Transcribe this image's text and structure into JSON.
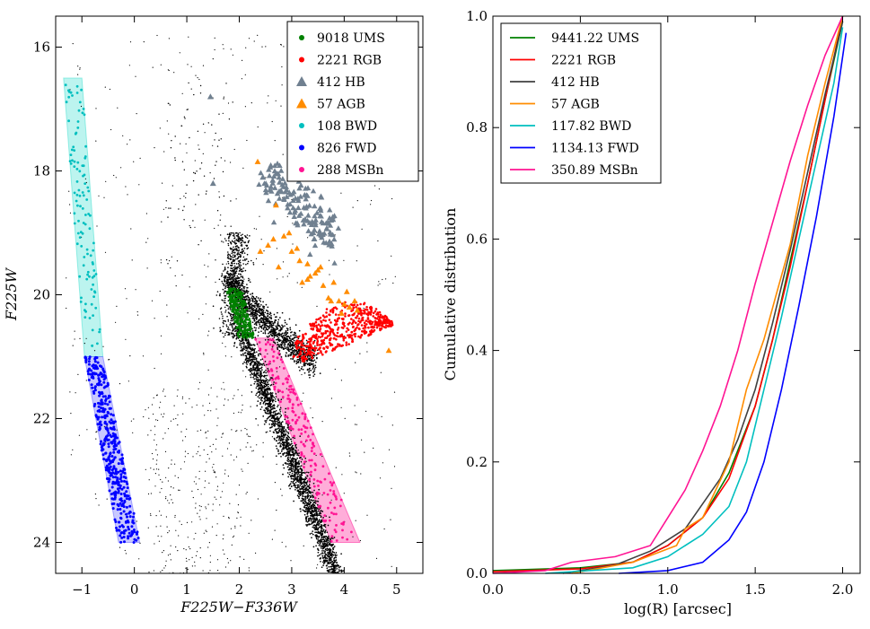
{
  "chart_data": [
    {
      "type": "scatter",
      "title": "",
      "xlabel": "F225W−F336W",
      "ylabel": "F225W",
      "xlim": [
        -1.5,
        5.5
      ],
      "ylim": [
        24.5,
        15.5
      ],
      "y_inverted": true,
      "xticks": [
        -1,
        0,
        1,
        2,
        3,
        4,
        5
      ],
      "xtick_labels": [
        "−1",
        "0",
        "1",
        "2",
        "3",
        "4",
        "5"
      ],
      "yticks": [
        16,
        18,
        20,
        22,
        24
      ],
      "ytick_labels": [
        "16",
        "18",
        "20",
        "22",
        "24"
      ],
      "legend_position": "top-right",
      "series": [
        {
          "name": "9018 UMS",
          "count": 9018,
          "marker": "circle",
          "color": "#008000"
        },
        {
          "name": "2221 RGB",
          "count": 2221,
          "marker": "circle",
          "color": "#ff0000"
        },
        {
          "name": "412 HB",
          "count": 412,
          "marker": "triangle",
          "color": "#708090"
        },
        {
          "name": "57 AGB",
          "count": 57,
          "marker": "triangle",
          "color": "#ff8c00"
        },
        {
          "name": "108 BWD",
          "count": 108,
          "marker": "circle",
          "color": "#00bfbf"
        },
        {
          "name": "826 FWD",
          "count": 826,
          "marker": "circle",
          "color": "#0000ff"
        },
        {
          "name": "288 MSBn",
          "count": 288,
          "marker": "circle",
          "color": "#ff1493"
        }
      ],
      "selection_regions": [
        {
          "name": "BWD",
          "color": "#40e0d0",
          "polygon": [
            [
              -1.35,
              16.5
            ],
            [
              -1.0,
              16.5
            ],
            [
              -0.6,
              21.0
            ],
            [
              -0.95,
              21.0
            ]
          ]
        },
        {
          "name": "FWD",
          "color": "#6060ff",
          "polygon": [
            [
              -0.95,
              21.0
            ],
            [
              -0.6,
              21.0
            ],
            [
              0.1,
              24.0
            ],
            [
              -0.3,
              24.0
            ]
          ]
        },
        {
          "name": "MSBn",
          "color": "#ff1493",
          "polygon": [
            [
              2.3,
              20.7
            ],
            [
              2.65,
              20.7
            ],
            [
              4.3,
              24.0
            ],
            [
              3.75,
              24.0
            ]
          ]
        }
      ]
    },
    {
      "type": "line",
      "title": "",
      "xlabel": "log(R) [arcsec]",
      "ylabel": "Cumulative distribution",
      "xlim": [
        0.0,
        2.1
      ],
      "ylim": [
        0.0,
        1.0
      ],
      "xticks": [
        0.0,
        0.5,
        1.0,
        1.5,
        2.0
      ],
      "xtick_labels": [
        "0.0",
        "0.5",
        "1.0",
        "1.5",
        "2.0"
      ],
      "yticks": [
        0.0,
        0.2,
        0.4,
        0.6,
        0.8,
        1.0
      ],
      "ytick_labels": [
        "0.0",
        "0.2",
        "0.4",
        "0.6",
        "0.8",
        "1.0"
      ],
      "legend_position": "top-left",
      "series": [
        {
          "name": "9441.22 UMS",
          "color": "#008000",
          "x": [
            0.0,
            0.5,
            0.8,
            1.0,
            1.2,
            1.35,
            1.5,
            1.6,
            1.7,
            1.8,
            1.9,
            2.0
          ],
          "y": [
            0.005,
            0.01,
            0.02,
            0.05,
            0.1,
            0.18,
            0.3,
            0.42,
            0.56,
            0.7,
            0.85,
            0.99
          ]
        },
        {
          "name": "2221 RGB",
          "color": "#ff0000",
          "x": [
            0.0,
            0.5,
            0.8,
            1.0,
            1.2,
            1.35,
            1.5,
            1.6,
            1.7,
            1.8,
            1.9,
            2.0
          ],
          "y": [
            0.003,
            0.008,
            0.02,
            0.05,
            0.1,
            0.17,
            0.3,
            0.42,
            0.55,
            0.7,
            0.85,
            1.0
          ]
        },
        {
          "name": "412 HB",
          "color": "#404040",
          "x": [
            0.4,
            0.7,
            0.9,
            1.1,
            1.3,
            1.4,
            1.5,
            1.6,
            1.7,
            1.8,
            1.9,
            2.0
          ],
          "y": [
            0.0,
            0.015,
            0.04,
            0.08,
            0.17,
            0.24,
            0.33,
            0.45,
            0.58,
            0.72,
            0.86,
            0.99
          ]
        },
        {
          "name": "57 AGB",
          "color": "#ff8c00",
          "x": [
            0.45,
            0.8,
            1.05,
            1.1,
            1.2,
            1.35,
            1.45,
            1.55,
            1.62,
            1.7,
            1.8,
            1.9,
            2.0
          ],
          "y": [
            0.0,
            0.02,
            0.05,
            0.08,
            0.1,
            0.2,
            0.33,
            0.42,
            0.5,
            0.59,
            0.75,
            0.88,
            1.0
          ]
        },
        {
          "name": "117.82 BWD",
          "color": "#00bfbf",
          "x": [
            0.3,
            0.8,
            1.0,
            1.2,
            1.35,
            1.45,
            1.55,
            1.65,
            1.75,
            1.85,
            1.95,
            2.0
          ],
          "y": [
            0.0,
            0.01,
            0.03,
            0.07,
            0.12,
            0.2,
            0.33,
            0.46,
            0.6,
            0.74,
            0.88,
            0.98
          ]
        },
        {
          "name": "1134.13 FWD",
          "color": "#0000ff",
          "x": [
            0.72,
            1.0,
            1.2,
            1.35,
            1.45,
            1.55,
            1.65,
            1.75,
            1.85,
            1.95,
            2.02
          ],
          "y": [
            0.0,
            0.005,
            0.02,
            0.06,
            0.11,
            0.2,
            0.33,
            0.48,
            0.64,
            0.82,
            0.97
          ]
        },
        {
          "name": "350.89 MSBn",
          "color": "#ff1493",
          "x": [
            0.0,
            0.3,
            0.45,
            0.7,
            0.9,
            1.0,
            1.1,
            1.2,
            1.3,
            1.4,
            1.5,
            1.6,
            1.7,
            1.8,
            1.9,
            2.0
          ],
          "y": [
            0.0,
            0.005,
            0.02,
            0.03,
            0.05,
            0.1,
            0.15,
            0.22,
            0.3,
            0.4,
            0.52,
            0.63,
            0.74,
            0.84,
            0.93,
            1.0
          ]
        }
      ]
    }
  ]
}
